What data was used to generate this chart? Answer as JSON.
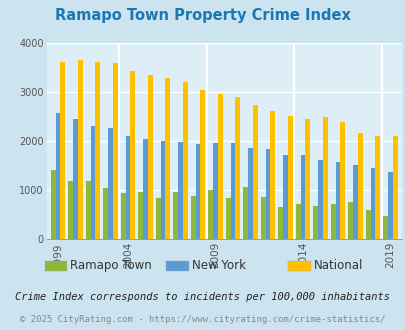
{
  "title": "Ramapo Town Property Crime Index",
  "title_color": "#1a78b4",
  "years": [
    1999,
    2000,
    2001,
    2002,
    2004,
    2005,
    2006,
    2007,
    2008,
    2009,
    2010,
    2011,
    2012,
    2013,
    2014,
    2015,
    2016,
    2017,
    2018,
    2019
  ],
  "ramapo": [
    1420,
    1180,
    1190,
    1050,
    950,
    970,
    850,
    970,
    890,
    1000,
    850,
    1060,
    870,
    650,
    720,
    680,
    720,
    760,
    590,
    480
  ],
  "new_york": [
    2570,
    2440,
    2310,
    2260,
    2100,
    2050,
    2000,
    1980,
    1950,
    1970,
    1960,
    1850,
    1840,
    1720,
    1720,
    1610,
    1570,
    1510,
    1450,
    1360
  ],
  "national": [
    3620,
    3660,
    3620,
    3600,
    3420,
    3350,
    3280,
    3210,
    3040,
    2960,
    2890,
    2730,
    2610,
    2510,
    2450,
    2490,
    2390,
    2170,
    2100,
    2100
  ],
  "bar_color_ramapo": "#8db83a",
  "bar_color_newyork": "#5b9bd5",
  "bar_color_national": "#ffc000",
  "bg_color": "#cce4f0",
  "plot_bg_color": "#deeef7",
  "ylim": [
    0,
    4000
  ],
  "ylabel_ticks": [
    0,
    1000,
    2000,
    3000,
    4000
  ],
  "xtick_labels": [
    "1999",
    "2004",
    "2009",
    "2014",
    "2019"
  ],
  "legend_labels": [
    "Ramapo Town",
    "New York",
    "National"
  ],
  "footnote1": "Crime Index corresponds to incidents per 100,000 inhabitants",
  "footnote2": "© 2025 CityRating.com - https://www.cityrating.com/crime-statistics/",
  "footnote1_color": "#222222",
  "footnote2_color": "#888888",
  "title_fontsize": 10.5,
  "footnote1_fontsize": 7.5,
  "footnote2_fontsize": 6.5,
  "legend_fontsize": 8.5
}
